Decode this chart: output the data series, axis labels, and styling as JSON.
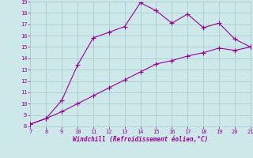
{
  "xlabel": "Windchill (Refroidissement éolien,°C)",
  "x_data": [
    7,
    8,
    9,
    10,
    11,
    12,
    13,
    14,
    15,
    16,
    17,
    18,
    19,
    20,
    21
  ],
  "y_upper": [
    8.2,
    8.7,
    10.3,
    13.4,
    15.8,
    16.3,
    16.8,
    18.9,
    18.2,
    17.1,
    17.9,
    16.7,
    17.1,
    15.7,
    15.0
  ],
  "y_lower": [
    8.2,
    8.7,
    9.3,
    10.0,
    10.7,
    11.4,
    12.1,
    12.8,
    13.5,
    13.8,
    14.2,
    14.5,
    14.9,
    14.7,
    15.0
  ],
  "line_color": "#990099",
  "background_color": "#cce8e8",
  "grid_color": "#aacccc",
  "tick_color": "#990099",
  "xlabel_color": "#990099",
  "xlim": [
    7,
    21
  ],
  "ylim": [
    8,
    19
  ],
  "xticks": [
    7,
    8,
    9,
    10,
    11,
    12,
    13,
    14,
    15,
    16,
    17,
    18,
    19,
    20,
    21
  ],
  "yticks": [
    8,
    9,
    10,
    11,
    12,
    13,
    14,
    15,
    16,
    17,
    18,
    19
  ]
}
